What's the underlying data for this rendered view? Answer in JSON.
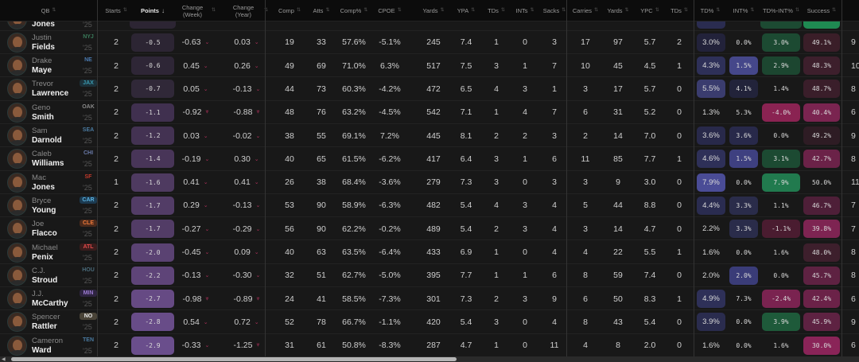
{
  "headers": {
    "qb": "QB",
    "starts": "Starts",
    "points": "Points",
    "chg_week": "Change (Week)",
    "chg_year": "Change (Year)",
    "comp": "Comp",
    "atts": "Atts",
    "comp_pct": "Comp%",
    "cpoe": "CPOE",
    "yards": "Yards",
    "ypa": "YPA",
    "tds": "TDs",
    "ints": "INTs",
    "sacks": "Sacks",
    "carries": "Carries",
    "rush_yards": "Yards",
    "ypc": "YPC",
    "rush_tds": "TDs",
    "td_pct": "TD%",
    "int_pct": "INT%",
    "td_int_pct": "TD%-INT%",
    "success": "Success"
  },
  "sort": {
    "column": "Points",
    "direction": "descending"
  },
  "partial_row": {
    "last": "Jones",
    "year": "'25",
    "starts": "2"
  },
  "rows": [
    {
      "first": "Justin",
      "last": "Fields",
      "team": "NYJ",
      "team_color": "#3a7a5a",
      "team_bg": "",
      "year": "'25",
      "starts": "2",
      "points": "-0.5",
      "pts_bg": "#2c2533",
      "chg_week": "-0.63",
      "cw2": false,
      "chg_year": "0.03",
      "cy2": false,
      "comp": "19",
      "atts": "33",
      "comp_pct": "57.6%",
      "cpoe": "-5.1%",
      "yards": "245",
      "ypa": "7.4",
      "tds": "1",
      "ints": "0",
      "sacks": "3",
      "carries": "17",
      "rush_yards": "97",
      "ypc": "5.7",
      "rush_tds": "2",
      "td_pct": "3.0%",
      "int_pct": "0.0%",
      "td_int_pct": "3.0%",
      "success": "49.1%",
      "next": "9",
      "bg": [
        "#22223a",
        "",
        "#1c4a32",
        "#3a1e28"
      ]
    },
    {
      "first": "Drake",
      "last": "Maye",
      "team": "NE",
      "team_color": "#4a7ab0",
      "team_bg": "",
      "year": "'25",
      "starts": "2",
      "points": "-0.6",
      "pts_bg": "#2e2636",
      "chg_week": "0.45",
      "cw2": false,
      "chg_year": "0.26",
      "cy2": false,
      "comp": "49",
      "atts": "69",
      "comp_pct": "71.0%",
      "cpoe": "6.3%",
      "yards": "517",
      "ypa": "7.5",
      "tds": "3",
      "ints": "1",
      "sacks": "7",
      "carries": "10",
      "rush_yards": "45",
      "ypc": "4.5",
      "rush_tds": "1",
      "td_pct": "4.3%",
      "int_pct": "1.5%",
      "td_int_pct": "2.9%",
      "success": "48.3%",
      "next": "10",
      "bg": [
        "#2e3058",
        "#45478a",
        "#1c4630",
        "#3d1f2c"
      ]
    },
    {
      "first": "Trevor",
      "last": "Lawrence",
      "team": "JAX",
      "team_color": "#3a9ab0",
      "team_bg": "#1c3038",
      "year": "'25",
      "starts": "2",
      "points": "-0.7",
      "pts_bg": "#302838",
      "chg_week": "0.05",
      "cw2": false,
      "chg_year": "-0.13",
      "cy2": false,
      "comp": "44",
      "atts": "73",
      "comp_pct": "60.3%",
      "cpoe": "-4.2%",
      "yards": "472",
      "ypa": "6.5",
      "tds": "4",
      "ints": "3",
      "sacks": "1",
      "carries": "3",
      "rush_yards": "17",
      "ypc": "5.7",
      "rush_tds": "0",
      "td_pct": "5.5%",
      "int_pct": "4.1%",
      "td_int_pct": "1.4%",
      "success": "48.7%",
      "next": "8",
      "bg": [
        "#3a3c6e",
        "#22233a",
        "",
        "#3a1e2a"
      ]
    },
    {
      "first": "Geno",
      "last": "Smith",
      "team": "OAK",
      "team_color": "#888888",
      "team_bg": "",
      "year": "'25",
      "starts": "2",
      "points": "-1.1",
      "pts_bg": "#40304f",
      "chg_week": "-0.92",
      "cw2": true,
      "chg_year": "-0.88",
      "cy2": true,
      "comp": "48",
      "atts": "76",
      "comp_pct": "63.2%",
      "cpoe": "-4.5%",
      "yards": "542",
      "ypa": "7.1",
      "tds": "1",
      "ints": "4",
      "sacks": "7",
      "carries": "6",
      "rush_yards": "31",
      "ypc": "5.2",
      "rush_tds": "0",
      "td_pct": "1.3%",
      "int_pct": "5.3%",
      "td_int_pct": "-4.0%",
      "success": "40.4%",
      "next": "6",
      "bg": [
        "",
        "",
        "#8a2352",
        "#7a2450"
      ]
    },
    {
      "first": "Sam",
      "last": "Darnold",
      "team": "SEA",
      "team_color": "#4a7aa0",
      "team_bg": "",
      "year": "'25",
      "starts": "2",
      "points": "-1.2",
      "pts_bg": "#433252",
      "chg_week": "0.03",
      "cw2": false,
      "chg_year": "-0.02",
      "cy2": false,
      "comp": "38",
      "atts": "55",
      "comp_pct": "69.1%",
      "cpoe": "7.2%",
      "yards": "445",
      "ypa": "8.1",
      "tds": "2",
      "ints": "2",
      "sacks": "3",
      "carries": "2",
      "rush_yards": "14",
      "ypc": "7.0",
      "rush_tds": "0",
      "td_pct": "3.6%",
      "int_pct": "3.6%",
      "td_int_pct": "0.0%",
      "success": "49.2%",
      "next": "9",
      "bg": [
        "#28294a",
        "#28294a",
        "",
        "#2e1c24"
      ]
    },
    {
      "first": "Caleb",
      "last": "Williams",
      "team": "CHI",
      "team_color": "#6a7aa8",
      "team_bg": "",
      "year": "'25",
      "starts": "2",
      "points": "-1.4",
      "pts_bg": "#483558",
      "chg_week": "-0.19",
      "cw2": false,
      "chg_year": "0.30",
      "cy2": false,
      "comp": "40",
      "atts": "65",
      "comp_pct": "61.5%",
      "cpoe": "-6.2%",
      "yards": "417",
      "ypa": "6.4",
      "tds": "3",
      "ints": "1",
      "sacks": "6",
      "carries": "11",
      "rush_yards": "85",
      "ypc": "7.7",
      "rush_tds": "1",
      "td_pct": "4.6%",
      "int_pct": "1.5%",
      "td_int_pct": "3.1%",
      "success": "42.7%",
      "next": "8",
      "bg": [
        "#2e3058",
        "#3e4080",
        "#1c4a32",
        "#6b2248"
      ]
    },
    {
      "first": "Mac",
      "last": "Jones",
      "team": "SF",
      "team_color": "#c0392b",
      "team_bg": "",
      "year": "'25",
      "starts": "1",
      "points": "-1.6",
      "pts_bg": "#4e3a60",
      "chg_week": "0.41",
      "cw2": false,
      "chg_year": "0.41",
      "cy2": false,
      "comp": "26",
      "atts": "38",
      "comp_pct": "68.4%",
      "cpoe": "-3.6%",
      "yards": "279",
      "ypa": "7.3",
      "tds": "3",
      "ints": "0",
      "sacks": "3",
      "carries": "3",
      "rush_yards": "9",
      "ypc": "3.0",
      "rush_tds": "0",
      "td_pct": "7.9%",
      "int_pct": "0.0%",
      "td_int_pct": "7.9%",
      "success": "50.0%",
      "next": "11",
      "bg": [
        "#4a4c96",
        "",
        "#217a4e",
        ""
      ]
    },
    {
      "first": "Bryce",
      "last": "Young",
      "team": "CAR",
      "team_color": "#5ab0e0",
      "team_bg": "#1c3a50",
      "year": "'25",
      "starts": "2",
      "points": "-1.7",
      "pts_bg": "#523c66",
      "chg_week": "0.29",
      "cw2": false,
      "chg_year": "-0.13",
      "cy2": false,
      "comp": "53",
      "atts": "90",
      "comp_pct": "58.9%",
      "cpoe": "-6.3%",
      "yards": "482",
      "ypa": "5.4",
      "tds": "4",
      "ints": "3",
      "sacks": "4",
      "carries": "5",
      "rush_yards": "44",
      "ypc": "8.8",
      "rush_tds": "0",
      "td_pct": "4.4%",
      "int_pct": "3.3%",
      "td_int_pct": "1.1%",
      "success": "46.7%",
      "next": "7",
      "bg": [
        "#2a2c50",
        "#2a2c4a",
        "",
        "#4e1f38"
      ]
    },
    {
      "first": "Joe",
      "last": "Flacco",
      "team": "CLE",
      "team_color": "#f07a3a",
      "team_bg": "#4a2a1c",
      "year": "'25",
      "starts": "2",
      "points": "-1.7",
      "pts_bg": "#523c66",
      "chg_week": "-0.27",
      "cw2": false,
      "chg_year": "-0.29",
      "cy2": false,
      "comp": "56",
      "atts": "90",
      "comp_pct": "62.2%",
      "cpoe": "-0.2%",
      "yards": "489",
      "ypa": "5.4",
      "tds": "2",
      "ints": "3",
      "sacks": "4",
      "carries": "3",
      "rush_yards": "14",
      "ypc": "4.7",
      "rush_tds": "0",
      "td_pct": "2.2%",
      "int_pct": "3.3%",
      "td_int_pct": "-1.1%",
      "success": "39.8%",
      "next": "7",
      "bg": [
        "",
        "#2a2c4a",
        "#4a1c30",
        "#7e2452"
      ]
    },
    {
      "first": "Michael",
      "last": "Penix",
      "team": "ATL",
      "team_color": "#e04a4a",
      "team_bg": "#3a1c1c",
      "year": "'25",
      "starts": "2",
      "points": "-2.0",
      "pts_bg": "#5a4272",
      "chg_week": "-0.45",
      "cw2": false,
      "chg_year": "0.09",
      "cy2": false,
      "comp": "40",
      "atts": "63",
      "comp_pct": "63.5%",
      "cpoe": "-6.4%",
      "yards": "433",
      "ypa": "6.9",
      "tds": "1",
      "ints": "0",
      "sacks": "4",
      "carries": "4",
      "rush_yards": "22",
      "ypc": "5.5",
      "rush_tds": "1",
      "td_pct": "1.6%",
      "int_pct": "0.0%",
      "td_int_pct": "1.6%",
      "success": "48.0%",
      "next": "8",
      "bg": [
        "",
        "",
        "",
        "#3d1f2c"
      ]
    },
    {
      "first": "C.J.",
      "last": "Stroud",
      "team": "HOU",
      "team_color": "#4a6a7a",
      "team_bg": "",
      "year": "'25",
      "starts": "2",
      "points": "-2.2",
      "pts_bg": "#5e4478",
      "chg_week": "-0.13",
      "cw2": false,
      "chg_year": "-0.30",
      "cy2": false,
      "comp": "32",
      "atts": "51",
      "comp_pct": "62.7%",
      "cpoe": "-5.0%",
      "yards": "395",
      "ypa": "7.7",
      "tds": "1",
      "ints": "1",
      "sacks": "6",
      "carries": "8",
      "rush_yards": "59",
      "ypc": "7.4",
      "rush_tds": "0",
      "td_pct": "2.0%",
      "int_pct": "2.0%",
      "td_int_pct": "0.0%",
      "success": "45.7%",
      "next": "8",
      "bg": [
        "",
        "#3a3c78",
        "",
        "#5e2242"
      ]
    },
    {
      "first": "J.J.",
      "last": "McCarthy",
      "team": "MIN",
      "team_color": "#9a7ad0",
      "team_bg": "#2e2440",
      "year": "'25",
      "starts": "2",
      "points": "-2.7",
      "pts_bg": "#664a84",
      "chg_week": "-0.98",
      "cw2": true,
      "chg_year": "-0.89",
      "cy2": true,
      "comp": "24",
      "atts": "41",
      "comp_pct": "58.5%",
      "cpoe": "-7.3%",
      "yards": "301",
      "ypa": "7.3",
      "tds": "2",
      "ints": "3",
      "sacks": "9",
      "carries": "6",
      "rush_yards": "50",
      "ypc": "8.3",
      "rush_tds": "1",
      "td_pct": "4.9%",
      "int_pct": "7.3%",
      "td_int_pct": "-2.4%",
      "success": "42.4%",
      "next": "6",
      "bg": [
        "#2e3058",
        "",
        "#7a2350",
        "#6b2248"
      ]
    },
    {
      "first": "Spencer",
      "last": "Rattler",
      "team": "NO",
      "team_color": "#e8e8e8",
      "team_bg": "#4a4438",
      "year": "'25",
      "starts": "2",
      "points": "-2.8",
      "pts_bg": "#684c88",
      "chg_week": "0.54",
      "cw2": false,
      "chg_year": "0.72",
      "cy2": false,
      "comp": "52",
      "atts": "78",
      "comp_pct": "66.7%",
      "cpoe": "-1.1%",
      "yards": "420",
      "ypa": "5.4",
      "tds": "3",
      "ints": "0",
      "sacks": "4",
      "carries": "8",
      "rush_yards": "43",
      "ypc": "5.4",
      "rush_tds": "0",
      "td_pct": "3.9%",
      "int_pct": "0.0%",
      "td_int_pct": "3.9%",
      "success": "45.9%",
      "next": "9",
      "bg": [
        "#2a2c4e",
        "",
        "#1e5a3a",
        "#5e2242"
      ]
    },
    {
      "first": "Cameron",
      "last": "Ward",
      "team": "TEN",
      "team_color": "#4a7aa0",
      "team_bg": "",
      "year": "'25",
      "starts": "2",
      "points": "-2.9",
      "pts_bg": "#6a4e8c",
      "chg_week": "-0.33",
      "cw2": false,
      "chg_year": "-1.25",
      "cy2": true,
      "comp": "31",
      "atts": "61",
      "comp_pct": "50.8%",
      "cpoe": "-8.3%",
      "yards": "287",
      "ypa": "4.7",
      "tds": "1",
      "ints": "0",
      "sacks": "11",
      "carries": "4",
      "rush_yards": "8",
      "ypc": "2.0",
      "rush_tds": "0",
      "td_pct": "1.6%",
      "int_pct": "0.0%",
      "td_int_pct": "1.6%",
      "success": "30.0%",
      "next": "6",
      "bg": [
        "",
        "",
        "",
        "#8a2458"
      ]
    }
  ]
}
